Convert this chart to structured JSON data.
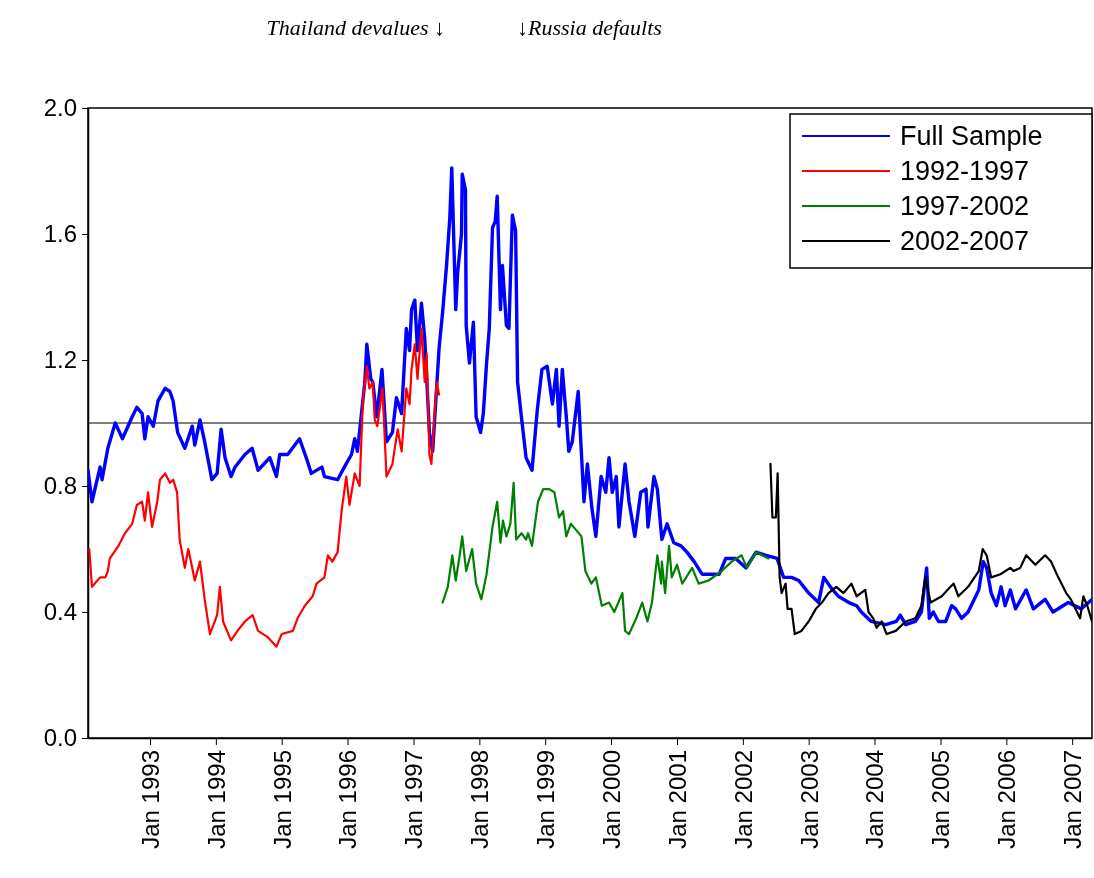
{
  "chart_data": {
    "type": "line",
    "xlim": [
      "1992-01-23",
      "2007-04-21"
    ],
    "ylim": [
      0,
      2
    ],
    "xticks": [
      {
        "value": "1993-01-01",
        "label": "Jan 1993"
      },
      {
        "value": "1994-01-01",
        "label": "Jan 1994"
      },
      {
        "value": "1995-01-01",
        "label": "Jan 1995"
      },
      {
        "value": "1996-01-01",
        "label": "Jan 1996"
      },
      {
        "value": "1997-01-01",
        "label": "Jan 1997"
      },
      {
        "value": "1998-01-01",
        "label": "Jan 1998"
      },
      {
        "value": "1999-01-01",
        "label": "Jan 1999"
      },
      {
        "value": "2000-01-01",
        "label": "Jan 2000"
      },
      {
        "value": "2001-01-01",
        "label": "Jan 2001"
      },
      {
        "value": "2002-01-01",
        "label": "Jan 2002"
      },
      {
        "value": "2003-01-01",
        "label": "Jan 2003"
      },
      {
        "value": "2004-01-01",
        "label": "Jan 2004"
      },
      {
        "value": "2005-01-01",
        "label": "Jan 2005"
      },
      {
        "value": "2006-01-01",
        "label": "Jan 2006"
      },
      {
        "value": "2007-01-01",
        "label": "Jan 2007"
      }
    ],
    "yticks": [
      {
        "value": 0,
        "label": "0.0"
      },
      0.4,
      0.8,
      1.2,
      1.6,
      {
        "value": 2,
        "label": "2.0"
      }
    ],
    "legend": "top right",
    "line_style": "solid",
    "ref_lines": [
      {
        "axis": "y",
        "value": 1,
        "color": "#000000"
      }
    ],
    "annotations": [
      "Thailand devalues ↓",
      "↓Russia defaults"
    ],
    "series": [
      {
        "name": "Full Sample",
        "color": "#0000ff",
        "x": [
          "1992-01-23",
          "1992-02-14",
          "1992-03-30",
          "1992-04-10",
          "1992-05-12",
          "1992-06-22",
          "1992-08-01",
          "1992-09-24",
          "1992-10-20",
          "1992-11-18",
          "1992-12-03",
          "1992-12-21",
          "1993-01-19",
          "1993-02-14",
          "1993-03-26",
          "1993-04-21",
          "1993-05-09",
          "1993-06-03",
          "1993-07-13",
          "1993-08-23",
          "1993-09-06",
          "1993-10-05",
          "1993-10-31",
          "1993-12-10",
          "1994-01-08",
          "1994-01-30",
          "1994-02-21",
          "1994-03-26",
          "1994-04-17",
          "1994-06-11",
          "1994-07-21",
          "1994-08-23",
          "1994-10-27",
          "1994-12-03",
          "1994-12-21",
          "1995-02-03",
          "1995-04-10",
          "1995-05-23",
          "1995-06-14",
          "1995-08-12",
          "1995-08-26",
          "1995-11-07",
          "1995-12-14",
          "1996-01-23",
          "1996-02-10",
          "1996-02-25",
          "1996-04-06",
          "1996-04-17",
          "1996-05-09",
          "1996-05-20",
          "1996-06-11",
          "1996-07-10",
          "1996-08-04",
          "1996-09-06",
          "1996-09-28",
          "1996-10-27",
          "1996-11-22",
          "1996-12-10",
          "1996-12-21",
          "1997-01-08",
          "1997-01-23",
          "1997-02-14",
          "1997-03-04",
          "1997-03-30",
          "1997-04-17",
          "1997-05-23",
          "1997-06-11",
          "1997-07-03",
          "1997-07-21",
          "1997-08-01",
          "1997-08-23",
          "1997-09-03",
          "1997-09-24",
          "1997-09-28",
          "1997-10-16",
          "1997-10-20",
          "1997-11-07",
          "1997-11-29",
          "1997-12-14",
          "1998-01-08",
          "1998-01-23",
          "1998-02-10",
          "1998-02-25",
          "1998-03-15",
          "1998-03-30",
          "1998-04-10",
          "1998-04-28",
          "1998-05-09",
          "1998-05-31",
          "1998-06-14",
          "1998-07-03",
          "1998-07-21",
          "1998-08-01",
          "1998-08-26",
          "1998-09-17",
          "1998-10-20",
          "1998-11-18",
          "1998-12-14",
          "1999-01-12",
          "1999-02-10",
          "1999-03-04",
          "1999-03-19",
          "1999-04-06",
          "1999-04-28",
          "1999-05-12",
          "1999-05-31",
          "1999-07-03",
          "1999-08-04",
          "1999-08-23",
          "1999-09-17",
          "1999-10-09",
          "1999-11-07",
          "1999-12-03",
          "1999-12-21",
          "2000-01-08",
          "2000-01-30",
          "2000-02-14",
          "2000-03-19",
          "2000-04-10",
          "2000-05-12",
          "2000-06-14",
          "2000-07-13",
          "2000-07-24",
          "2000-08-26",
          "2000-09-14",
          "2000-10-09",
          "2000-11-07",
          "2000-12-14",
          "2001-01-23",
          "2001-02-25",
          "2001-04-06",
          "2001-05-20",
          "2001-08-23",
          "2001-09-28",
          "2001-11-22",
          "2002-01-19",
          "2002-03-15",
          "2002-05-09",
          "2002-07-10",
          "2002-08-15",
          "2002-09-28",
          "2002-11-07",
          "2003-01-01",
          "2003-02-25",
          "2003-03-26",
          "2003-05-01",
          "2003-06-14",
          "2003-08-12",
          "2003-09-24",
          "2003-10-20",
          "2003-12-14",
          "2004-03-04",
          "2004-05-01",
          "2004-05-23",
          "2004-06-22",
          "2004-08-15",
          "2004-09-17",
          "2004-10-16",
          "2004-10-31",
          "2004-11-22",
          "2004-12-21",
          "2005-01-30",
          "2005-03-04",
          "2005-03-26",
          "2005-04-28",
          "2005-06-03",
          "2005-08-01",
          "2005-08-26",
          "2005-09-14",
          "2005-10-09",
          "2005-11-07",
          "2005-12-03",
          "2005-12-25",
          "2006-01-23",
          "2006-02-21",
          "2006-04-21",
          "2006-05-31",
          "2006-08-04",
          "2006-09-17",
          "2006-12-10",
          "2007-02-21",
          "2007-04-21"
        ],
        "values": [
          0.85,
          0.75,
          0.86,
          0.82,
          0.92,
          1.0,
          0.95,
          1.02,
          1.05,
          1.03,
          0.95,
          1.02,
          0.99,
          1.07,
          1.11,
          1.1,
          1.07,
          0.97,
          0.92,
          0.99,
          0.93,
          1.01,
          0.94,
          0.82,
          0.84,
          0.98,
          0.89,
          0.83,
          0.86,
          0.9,
          0.92,
          0.85,
          0.89,
          0.83,
          0.9,
          0.9,
          0.95,
          0.88,
          0.84,
          0.86,
          0.83,
          0.82,
          0.86,
          0.9,
          0.95,
          0.91,
          1.13,
          1.25,
          1.14,
          1.13,
          1.02,
          1.17,
          0.94,
          0.97,
          1.08,
          1.03,
          1.3,
          1.23,
          1.36,
          1.39,
          1.23,
          1.38,
          1.27,
          0.97,
          0.91,
          1.24,
          1.35,
          1.5,
          1.65,
          1.81,
          1.36,
          1.48,
          1.6,
          1.79,
          1.74,
          1.31,
          1.19,
          1.32,
          1.02,
          0.97,
          1.03,
          1.19,
          1.3,
          1.62,
          1.64,
          1.72,
          1.36,
          1.5,
          1.31,
          1.3,
          1.66,
          1.61,
          1.13,
          1.0,
          0.89,
          0.85,
          1.04,
          1.17,
          1.18,
          1.06,
          1.17,
          0.99,
          1.17,
          1.02,
          0.91,
          0.94,
          1.1,
          0.75,
          0.87,
          0.73,
          0.64,
          0.83,
          0.78,
          0.89,
          0.78,
          0.83,
          0.67,
          0.87,
          0.75,
          0.64,
          0.78,
          0.79,
          0.67,
          0.83,
          0.79,
          0.63,
          0.68,
          0.62,
          0.61,
          0.59,
          0.56,
          0.52,
          0.52,
          0.57,
          0.57,
          0.54,
          0.59,
          0.58,
          0.57,
          0.51,
          0.51,
          0.5,
          0.46,
          0.43,
          0.51,
          0.48,
          0.45,
          0.43,
          0.42,
          0.4,
          0.37,
          0.36,
          0.37,
          0.39,
          0.36,
          0.37,
          0.4,
          0.54,
          0.38,
          0.4,
          0.37,
          0.37,
          0.42,
          0.41,
          0.38,
          0.4,
          0.47,
          0.56,
          0.54,
          0.46,
          0.42,
          0.48,
          0.42,
          0.47,
          0.41,
          0.47,
          0.41,
          0.44,
          0.4,
          0.43,
          0.41,
          0.44
        ]
      },
      {
        "name": "1992-1997",
        "color": "#ff0000",
        "x": [
          "1992-01-30",
          "1992-02-14",
          "1992-03-30",
          "1992-04-28",
          "1992-05-12",
          "1992-05-23",
          "1992-07-10",
          "1992-08-15",
          "1992-09-24",
          "1992-10-20",
          "1992-11-18",
          "1992-12-03",
          "1992-12-21",
          "1993-01-12",
          "1993-02-10",
          "1993-02-25",
          "1993-03-26",
          "1993-04-21",
          "1993-05-09",
          "1993-05-31",
          "1993-06-14",
          "1993-07-13",
          "1993-08-01",
          "1993-08-23",
          "1993-09-06",
          "1993-10-05",
          "1993-10-31",
          "1993-11-29",
          "1994-01-08",
          "1994-01-23",
          "1994-02-10",
          "1994-03-26",
          "1994-05-01",
          "1994-06-11",
          "1994-07-24",
          "1994-08-23",
          "1994-10-16",
          "1994-12-03",
          "1995-01-01",
          "1995-03-04",
          "1995-03-30",
          "1995-05-09",
          "1995-06-22",
          "1995-07-13",
          "1995-08-26",
          "1995-09-14",
          "1995-10-09",
          "1995-11-07",
          "1995-11-29",
          "1995-12-25",
          "1996-01-12",
          "1996-02-10",
          "1996-03-08",
          "1996-03-26",
          "1996-04-17",
          "1996-05-01",
          "1996-05-20",
          "1996-05-31",
          "1996-06-14",
          "1996-07-13",
          "1996-08-04",
          "1996-09-06",
          "1996-10-05",
          "1996-10-27",
          "1996-11-22",
          "1996-12-10",
          "1996-12-21",
          "1997-01-08",
          "1997-01-23",
          "1997-02-14",
          "1997-03-04",
          "1997-03-15",
          "1997-03-30",
          "1997-04-10",
          "1997-05-09",
          "1997-05-23"
        ],
        "values": [
          0.6,
          0.48,
          0.51,
          0.51,
          0.53,
          0.57,
          0.61,
          0.65,
          0.68,
          0.74,
          0.75,
          0.69,
          0.78,
          0.67,
          0.75,
          0.82,
          0.84,
          0.81,
          0.82,
          0.78,
          0.63,
          0.54,
          0.6,
          0.54,
          0.5,
          0.56,
          0.44,
          0.33,
          0.39,
          0.48,
          0.37,
          0.31,
          0.34,
          0.37,
          0.39,
          0.34,
          0.32,
          0.29,
          0.33,
          0.34,
          0.38,
          0.42,
          0.45,
          0.49,
          0.51,
          0.58,
          0.56,
          0.59,
          0.72,
          0.83,
          0.74,
          0.84,
          0.8,
          1.07,
          1.18,
          1.11,
          1.13,
          1.01,
          0.99,
          1.11,
          0.83,
          0.87,
          0.98,
          0.91,
          1.11,
          1.06,
          1.17,
          1.25,
          1.14,
          1.3,
          1.13,
          1.22,
          0.9,
          0.87,
          1.13,
          1.09
        ]
      },
      {
        "name": "1997-2002",
        "color": "#008000",
        "x": [
          "1997-06-11",
          "1997-07-10",
          "1997-08-04",
          "1997-08-23",
          "1997-09-14",
          "1997-09-28",
          "1997-10-20",
          "1997-11-22",
          "1997-12-14",
          "1998-01-12",
          "1998-02-10",
          "1998-03-15",
          "1998-04-10",
          "1998-04-28",
          "1998-05-12",
          "1998-05-31",
          "1998-06-22",
          "1998-07-10",
          "1998-07-24",
          "1998-08-23",
          "1998-09-17",
          "1998-09-28",
          "1998-10-20",
          "1998-11-22",
          "1998-12-21",
          "1999-01-23",
          "1999-02-21",
          "1999-03-19",
          "1999-04-10",
          "1999-04-28",
          "1999-05-23",
          "1999-06-22",
          "1999-07-21",
          "1999-08-12",
          "1999-09-14",
          "1999-10-09",
          "1999-11-11",
          "1999-12-21",
          "2000-01-19",
          "2000-03-04",
          "2000-03-19",
          "2000-04-10",
          "2000-05-20",
          "2000-06-22",
          "2000-07-21",
          "2000-08-15",
          "2000-09-14",
          "2000-10-05",
          "2000-10-09",
          "2000-10-27",
          "2000-11-18",
          "2000-12-03",
          "2001-01-01",
          "2001-01-30",
          "2001-03-26",
          "2001-05-01",
          "2001-06-25",
          "2001-09-06",
          "2001-10-31",
          "2001-12-25",
          "2002-01-23",
          "2002-03-15",
          "2002-05-23"
        ],
        "values": [
          0.43,
          0.48,
          0.58,
          0.5,
          0.58,
          0.64,
          0.53,
          0.6,
          0.49,
          0.44,
          0.52,
          0.67,
          0.75,
          0.62,
          0.69,
          0.64,
          0.68,
          0.81,
          0.63,
          0.65,
          0.63,
          0.65,
          0.61,
          0.75,
          0.79,
          0.79,
          0.78,
          0.7,
          0.72,
          0.64,
          0.68,
          0.66,
          0.64,
          0.53,
          0.49,
          0.51,
          0.42,
          0.43,
          0.4,
          0.46,
          0.34,
          0.33,
          0.38,
          0.43,
          0.37,
          0.43,
          0.58,
          0.49,
          0.56,
          0.46,
          0.61,
          0.51,
          0.55,
          0.49,
          0.54,
          0.49,
          0.5,
          0.53,
          0.56,
          0.58,
          0.54,
          0.59,
          0.57
        ]
      },
      {
        "name": "2002-2007",
        "color": "#000000",
        "x": [
          "2002-06-03",
          "2002-06-14",
          "2002-07-03",
          "2002-07-13",
          "2002-07-24",
          "2002-08-04",
          "2002-08-26",
          "2002-09-06",
          "2002-09-28",
          "2002-10-16",
          "2002-11-22",
          "2003-01-01",
          "2003-02-10",
          "2003-03-15",
          "2003-04-21",
          "2003-06-03",
          "2003-07-13",
          "2003-08-26",
          "2003-09-24",
          "2003-11-11",
          "2003-11-29",
          "2003-12-25",
          "2004-01-12",
          "2004-02-10",
          "2004-03-08",
          "2004-04-28",
          "2004-06-22",
          "2004-08-15",
          "2004-09-17",
          "2004-10-09",
          "2004-11-07",
          "2005-01-08",
          "2005-02-25",
          "2005-03-15",
          "2005-04-10",
          "2005-06-03",
          "2005-08-01",
          "2005-08-23",
          "2005-09-14",
          "2005-10-09",
          "2005-11-29",
          "2006-01-23",
          "2006-02-10",
          "2006-03-19",
          "2006-04-21",
          "2006-06-11",
          "2006-08-04",
          "2006-09-06",
          "2006-10-16",
          "2006-11-29",
          "2006-12-25",
          "2007-02-14",
          "2007-03-04",
          "2007-03-26",
          "2007-04-21"
        ],
        "values": [
          0.87,
          0.7,
          0.7,
          0.84,
          0.51,
          0.46,
          0.49,
          0.41,
          0.41,
          0.33,
          0.34,
          0.37,
          0.41,
          0.43,
          0.46,
          0.48,
          0.46,
          0.49,
          0.45,
          0.47,
          0.4,
          0.38,
          0.35,
          0.37,
          0.33,
          0.34,
          0.37,
          0.38,
          0.42,
          0.51,
          0.43,
          0.45,
          0.48,
          0.49,
          0.45,
          0.48,
          0.53,
          0.6,
          0.58,
          0.51,
          0.52,
          0.54,
          0.53,
          0.54,
          0.58,
          0.55,
          0.58,
          0.56,
          0.51,
          0.46,
          0.44,
          0.38,
          0.45,
          0.42,
          0.37
        ]
      }
    ]
  }
}
